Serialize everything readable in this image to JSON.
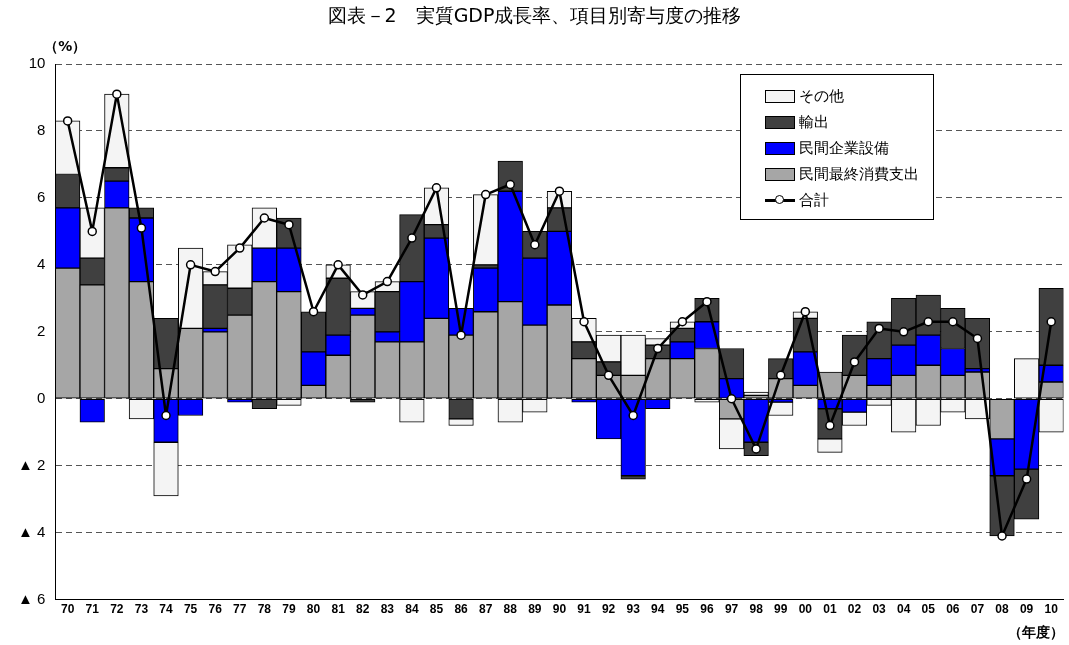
{
  "chart_data": {
    "type": "bar",
    "title": "図表－2　実質GDP成長率、項目別寄与度の推移",
    "ylabel": "（%）",
    "xlabel": "（年度）",
    "categories": [
      "70",
      "71",
      "72",
      "73",
      "74",
      "75",
      "76",
      "77",
      "78",
      "79",
      "80",
      "81",
      "82",
      "83",
      "84",
      "85",
      "86",
      "87",
      "88",
      "89",
      "90",
      "91",
      "92",
      "93",
      "94",
      "95",
      "96",
      "97",
      "98",
      "99",
      "00",
      "01",
      "02",
      "03",
      "04",
      "05",
      "06",
      "07",
      "08",
      "09",
      "10"
    ],
    "stacked": true,
    "ylim": [
      -6,
      10
    ],
    "yticks": [
      {
        "value": -6,
        "label": "▲ 6"
      },
      {
        "value": -4,
        "label": "▲ 4"
      },
      {
        "value": -2,
        "label": "▲ 2"
      },
      0,
      2,
      4,
      6,
      8,
      10
    ],
    "grid": "y",
    "legend": "top right",
    "series": [
      {
        "name": "民間最終消費支出",
        "color": "#a6a6a6",
        "values": [
          3.9,
          3.4,
          5.7,
          3.5,
          0.9,
          2.1,
          2.0,
          2.5,
          3.5,
          3.2,
          0.4,
          1.3,
          2.5,
          1.7,
          1.7,
          2.4,
          1.9,
          2.6,
          2.9,
          2.2,
          2.8,
          1.2,
          0.7,
          0.7,
          1.2,
          1.2,
          1.5,
          -0.6,
          0.1,
          0.6,
          0.4,
          0.8,
          0.7,
          0.4,
          0.7,
          1.0,
          0.7,
          0.8,
          -1.2,
          0,
          0.5
        ]
      },
      {
        "name": "民間企業設備",
        "color": "#0000ff",
        "values": [
          1.8,
          -0.7,
          0.8,
          1.9,
          -1.3,
          -0.5,
          0.1,
          -0.1,
          1.0,
          1.3,
          1.0,
          0.6,
          0.2,
          0.3,
          1.8,
          2.4,
          0.8,
          1.3,
          3.3,
          2.0,
          2.2,
          -0.1,
          -1.2,
          -2.3,
          -0.3,
          0.5,
          0.8,
          0.6,
          -1.3,
          -0.1,
          1.0,
          -0.3,
          -0.4,
          0.8,
          0.9,
          0.9,
          0.8,
          0.1,
          -1.1,
          -2.1,
          0.5
        ]
      },
      {
        "name": "輸出",
        "color": "#404040",
        "values": [
          1.0,
          0.8,
          0.4,
          0.3,
          1.5,
          0,
          1.3,
          0.8,
          -0.3,
          0.9,
          1.2,
          1.7,
          -0.1,
          1.2,
          2.0,
          0.4,
          -0.6,
          0.1,
          0.9,
          0.8,
          0.7,
          0.5,
          0.4,
          -0.1,
          0.4,
          0.4,
          0.7,
          0.9,
          -0.4,
          0.6,
          1.0,
          -0.9,
          1.2,
          1.1,
          1.4,
          1.2,
          1.2,
          1.5,
          -1.8,
          -1.5,
          2.3
        ]
      },
      {
        "name": "その他",
        "color": "#f4f4f4",
        "values": [
          1.6,
          1.5,
          2.2,
          -0.6,
          -1.6,
          2.4,
          0.4,
          1.3,
          1.2,
          -0.2,
          0,
          0.4,
          0.5,
          0.3,
          -0.7,
          1.1,
          -0.2,
          2.1,
          -0.7,
          -0.4,
          0.5,
          0.7,
          0.8,
          1.2,
          0.2,
          0.2,
          -0.1,
          -0.9,
          0.1,
          -0.4,
          0.2,
          -0.4,
          -0.4,
          -0.2,
          -1.0,
          -0.8,
          -0.4,
          -0.6,
          0,
          1.2,
          -1.0
        ]
      },
      {
        "name": "合計",
        "type": "line",
        "color": "#000000",
        "marker": "circle",
        "values": [
          8.3,
          5.0,
          9.1,
          5.1,
          -0.5,
          4.0,
          3.8,
          4.5,
          5.4,
          5.2,
          2.6,
          4.0,
          3.1,
          3.5,
          4.8,
          6.3,
          1.9,
          6.1,
          6.4,
          4.6,
          6.2,
          2.3,
          0.7,
          -0.5,
          1.5,
          2.3,
          2.9,
          0.0,
          -1.5,
          0.7,
          2.6,
          -0.8,
          1.1,
          2.1,
          2.0,
          2.3,
          2.3,
          1.8,
          -4.1,
          -2.4,
          2.3
        ]
      }
    ]
  }
}
